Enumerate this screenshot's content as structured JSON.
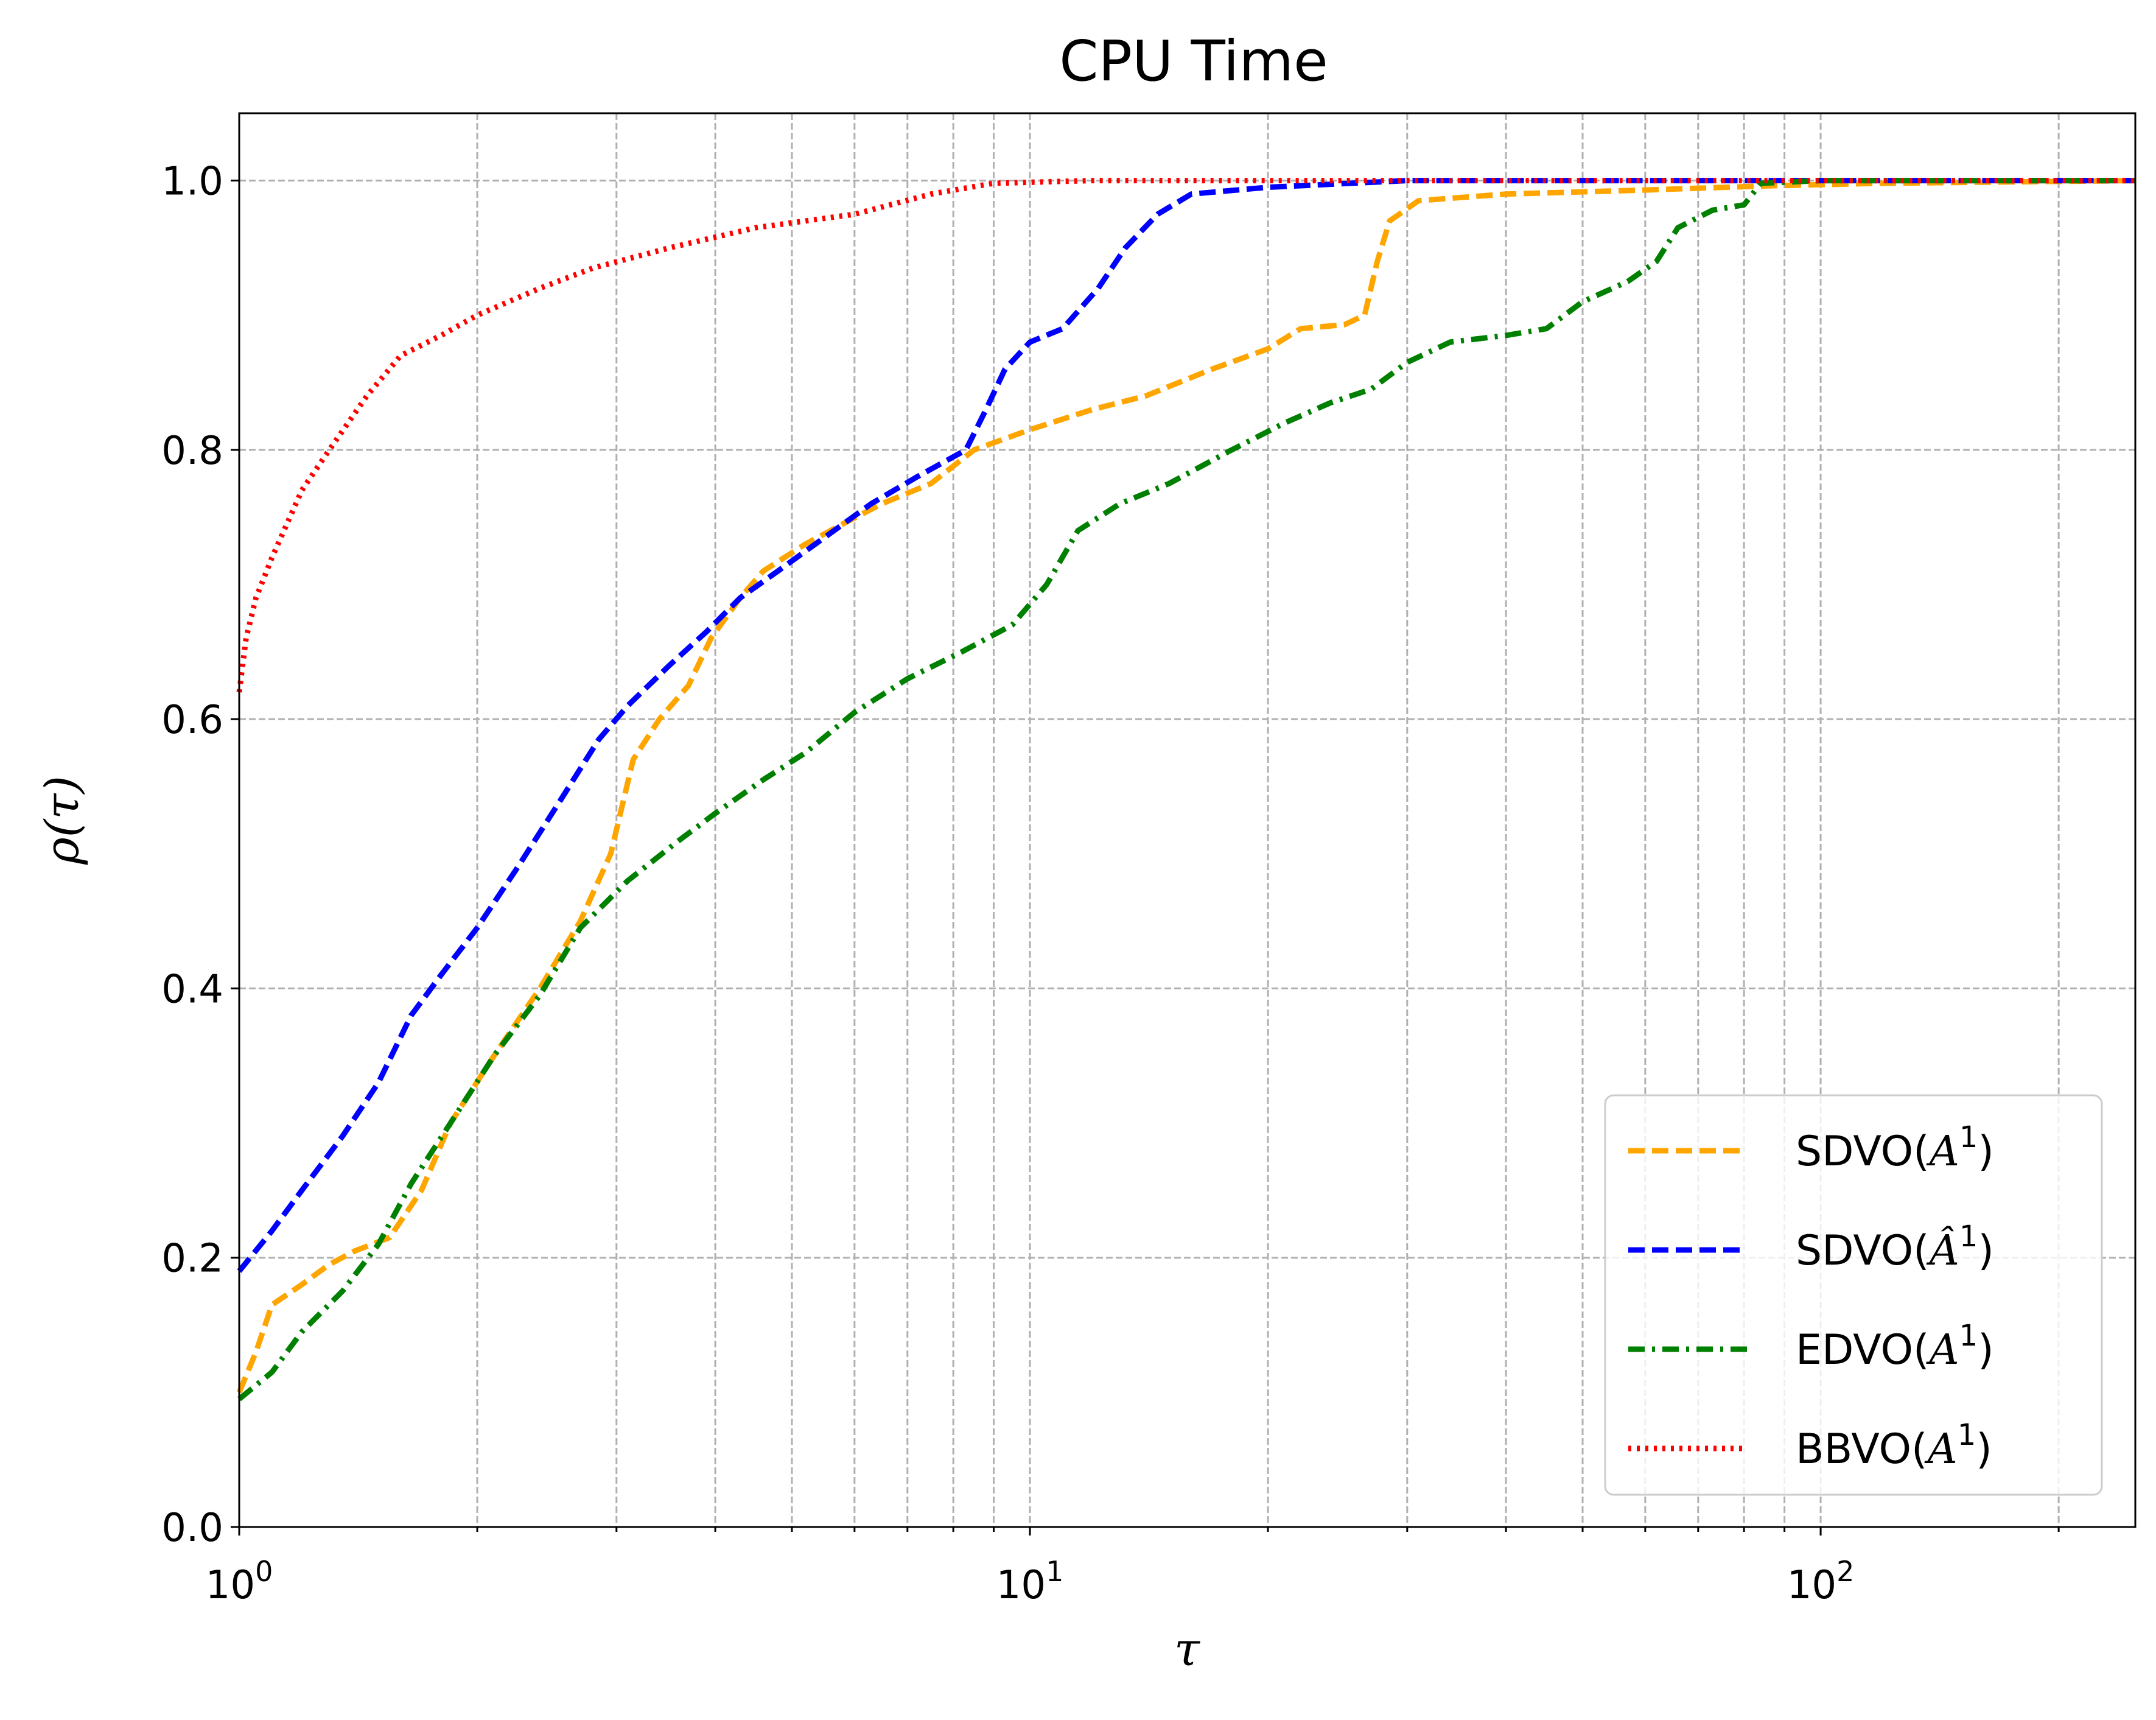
{
  "chart_data": {
    "type": "line",
    "title": "CPU Time",
    "xlabel": "τ",
    "ylabel": "ρ(τ)",
    "xscale": "log",
    "xlim": [
      1,
      250
    ],
    "ylim": [
      0,
      1.05
    ],
    "grid": true,
    "legend_position": "bottom-right",
    "x_ticks": [
      {
        "value": 1,
        "base": "10",
        "exp": "0"
      },
      {
        "value": 10,
        "base": "10",
        "exp": "1"
      },
      {
        "value": 100,
        "base": "10",
        "exp": "2"
      }
    ],
    "y_ticks": [
      {
        "value": 0.0,
        "label": "0.0"
      },
      {
        "value": 0.2,
        "label": "0.2"
      },
      {
        "value": 0.4,
        "label": "0.4"
      },
      {
        "value": 0.6,
        "label": "0.6"
      },
      {
        "value": 0.8,
        "label": "0.8"
      },
      {
        "value": 1.0,
        "label": "1.0"
      }
    ],
    "series": [
      {
        "name": "SDVO(A1)",
        "legend_prefix": "SDVO(",
        "legend_var": "A",
        "legend_hat": false,
        "legend_sup": "1",
        "legend_suffix": ")",
        "color": "#ffa500",
        "dash": "dashed",
        "points": [
          [
            1.0,
            0.1
          ],
          [
            1.05,
            0.13
          ],
          [
            1.1,
            0.165
          ],
          [
            1.2,
            0.18
          ],
          [
            1.3,
            0.195
          ],
          [
            1.4,
            0.205
          ],
          [
            1.55,
            0.215
          ],
          [
            1.7,
            0.25
          ],
          [
            1.85,
            0.3
          ],
          [
            2.1,
            0.35
          ],
          [
            2.4,
            0.4
          ],
          [
            2.7,
            0.45
          ],
          [
            2.95,
            0.5
          ],
          [
            3.15,
            0.57
          ],
          [
            3.4,
            0.6
          ],
          [
            3.7,
            0.625
          ],
          [
            3.95,
            0.66
          ],
          [
            4.3,
            0.69
          ],
          [
            4.6,
            0.71
          ],
          [
            5.2,
            0.73
          ],
          [
            5.8,
            0.745
          ],
          [
            6.5,
            0.76
          ],
          [
            7.5,
            0.775
          ],
          [
            8.5,
            0.8
          ],
          [
            10.0,
            0.815
          ],
          [
            12.0,
            0.83
          ],
          [
            14.0,
            0.84
          ],
          [
            17.0,
            0.86
          ],
          [
            20.0,
            0.875
          ],
          [
            22.0,
            0.89
          ],
          [
            25.0,
            0.893
          ],
          [
            26.5,
            0.9
          ],
          [
            27.5,
            0.94
          ],
          [
            28.5,
            0.97
          ],
          [
            31.0,
            0.985
          ],
          [
            40.0,
            0.99
          ],
          [
            60.0,
            0.993
          ],
          [
            85.0,
            0.996
          ],
          [
            120.0,
            0.998
          ],
          [
            250.0,
            1.0
          ]
        ]
      },
      {
        "name": "SDVO(Â1)",
        "legend_prefix": "SDVO(",
        "legend_var": "Â",
        "legend_hat": true,
        "legend_sup": "1",
        "legend_suffix": ")",
        "color": "#0000ff",
        "dash": "dashed",
        "points": [
          [
            1.0,
            0.19
          ],
          [
            1.1,
            0.22
          ],
          [
            1.2,
            0.25
          ],
          [
            1.35,
            0.29
          ],
          [
            1.5,
            0.33
          ],
          [
            1.65,
            0.38
          ],
          [
            1.8,
            0.41
          ],
          [
            2.0,
            0.445
          ],
          [
            2.25,
            0.49
          ],
          [
            2.55,
            0.54
          ],
          [
            2.85,
            0.585
          ],
          [
            3.1,
            0.61
          ],
          [
            3.5,
            0.64
          ],
          [
            3.9,
            0.665
          ],
          [
            4.3,
            0.69
          ],
          [
            4.8,
            0.71
          ],
          [
            5.5,
            0.735
          ],
          [
            6.3,
            0.76
          ],
          [
            7.2,
            0.78
          ],
          [
            8.3,
            0.8
          ],
          [
            8.8,
            0.83
          ],
          [
            9.3,
            0.86
          ],
          [
            10.0,
            0.88
          ],
          [
            11.0,
            0.89
          ],
          [
            12.2,
            0.92
          ],
          [
            13.2,
            0.95
          ],
          [
            14.5,
            0.975
          ],
          [
            16.0,
            0.99
          ],
          [
            20.0,
            0.995
          ],
          [
            30.0,
            1.0
          ],
          [
            250.0,
            1.0
          ]
        ]
      },
      {
        "name": "EDVO(A1)",
        "legend_prefix": "EDVO(",
        "legend_var": "A",
        "legend_hat": false,
        "legend_sup": "1",
        "legend_suffix": ")",
        "color": "#008000",
        "dash": "dashdot",
        "points": [
          [
            1.0,
            0.095
          ],
          [
            1.1,
            0.115
          ],
          [
            1.2,
            0.145
          ],
          [
            1.35,
            0.175
          ],
          [
            1.5,
            0.21
          ],
          [
            1.65,
            0.255
          ],
          [
            1.85,
            0.3
          ],
          [
            2.1,
            0.35
          ],
          [
            2.4,
            0.395
          ],
          [
            2.7,
            0.445
          ],
          [
            3.1,
            0.48
          ],
          [
            3.6,
            0.51
          ],
          [
            4.0,
            0.53
          ],
          [
            4.6,
            0.555
          ],
          [
            5.2,
            0.575
          ],
          [
            6.0,
            0.605
          ],
          [
            7.0,
            0.63
          ],
          [
            8.2,
            0.65
          ],
          [
            9.5,
            0.67
          ],
          [
            10.5,
            0.7
          ],
          [
            11.5,
            0.74
          ],
          [
            13.0,
            0.76
          ],
          [
            15.0,
            0.775
          ],
          [
            18.0,
            0.8
          ],
          [
            21.0,
            0.82
          ],
          [
            24.0,
            0.835
          ],
          [
            27.0,
            0.845
          ],
          [
            30.0,
            0.865
          ],
          [
            34.0,
            0.88
          ],
          [
            40.0,
            0.885
          ],
          [
            45.0,
            0.89
          ],
          [
            50.0,
            0.91
          ],
          [
            57.0,
            0.925
          ],
          [
            62.0,
            0.94
          ],
          [
            66.0,
            0.965
          ],
          [
            73.0,
            0.978
          ],
          [
            80.0,
            0.982
          ],
          [
            84.0,
            0.998
          ],
          [
            100.0,
            1.0
          ],
          [
            250.0,
            1.0
          ]
        ]
      },
      {
        "name": "BBVO(A1)",
        "legend_prefix": "BBVO(",
        "legend_var": "A",
        "legend_hat": false,
        "legend_sup": "1",
        "legend_suffix": ")",
        "color": "#ff0000",
        "dash": "dotted",
        "points": [
          [
            1.0,
            0.62
          ],
          [
            1.02,
            0.66
          ],
          [
            1.05,
            0.69
          ],
          [
            1.1,
            0.72
          ],
          [
            1.2,
            0.77
          ],
          [
            1.3,
            0.8
          ],
          [
            1.45,
            0.84
          ],
          [
            1.6,
            0.87
          ],
          [
            1.8,
            0.885
          ],
          [
            2.0,
            0.9
          ],
          [
            2.4,
            0.92
          ],
          [
            2.8,
            0.935
          ],
          [
            3.5,
            0.95
          ],
          [
            4.5,
            0.965
          ],
          [
            6.0,
            0.975
          ],
          [
            7.5,
            0.99
          ],
          [
            9.0,
            0.998
          ],
          [
            12.0,
            1.0
          ],
          [
            250.0,
            1.0
          ]
        ]
      }
    ]
  }
}
